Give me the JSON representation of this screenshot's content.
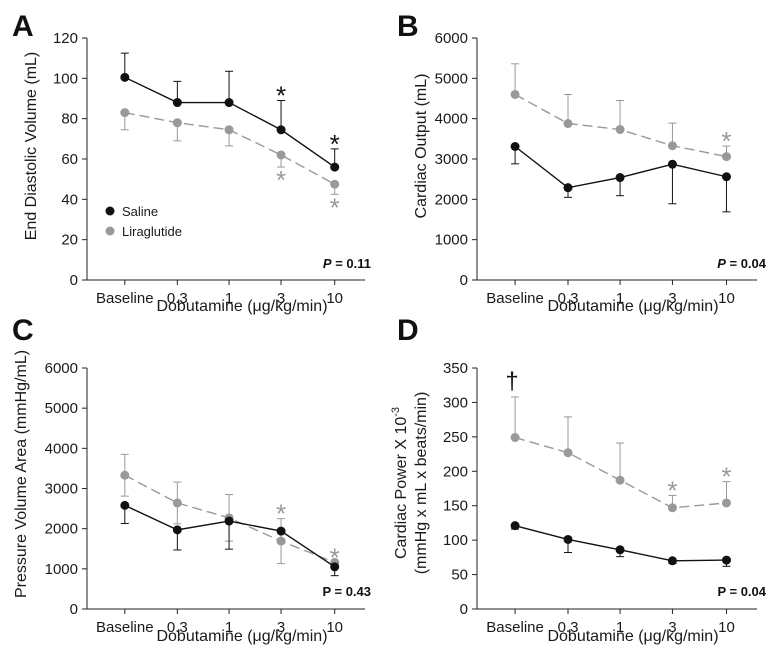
{
  "chart_data": [
    {
      "panel": "A",
      "type": "line",
      "categories": [
        "Baseline",
        "0.3",
        "1",
        "3",
        "10"
      ],
      "xlabel": "Dobutamine (μg/kg/min)",
      "ylabel": "End Diastolic Volume (mL)",
      "ylim": [
        0,
        120
      ],
      "yticks": [
        0,
        20,
        40,
        60,
        80,
        100,
        120
      ],
      "p_value_prefix": "P",
      "p_value_text": " = 0.11",
      "legend": {
        "placement": "bottom-left"
      },
      "series": [
        {
          "name": "Saline",
          "color": "#111111",
          "dashed": false,
          "values": [
            100.5,
            88,
            88,
            74.5,
            56
          ],
          "errors": [
            12,
            10.5,
            15.5,
            14.5,
            9
          ],
          "error_dir": "up",
          "markers": [
            "",
            "",
            "",
            "*",
            "*"
          ]
        },
        {
          "name": "Liraglutide",
          "color": "#999999",
          "dashed": true,
          "values": [
            83,
            78,
            74.5,
            62,
            47.5
          ],
          "errors": [
            8.5,
            9,
            8,
            6,
            5
          ],
          "error_dir": "down",
          "markers": [
            "",
            "",
            "",
            "*",
            "*"
          ]
        }
      ]
    },
    {
      "panel": "B",
      "type": "line",
      "categories": [
        "Baseline",
        "0.3",
        "1",
        "3",
        "10"
      ],
      "xlabel": "Dobutamine (μg/kg/min)",
      "ylabel": "Cardiac Output (mL)",
      "ylim": [
        0,
        6000
      ],
      "yticks": [
        0,
        1000,
        2000,
        3000,
        4000,
        5000,
        6000
      ],
      "p_value_prefix": "P",
      "p_value_text": " = 0.04",
      "series": [
        {
          "name": "Saline",
          "color": "#111111",
          "dashed": false,
          "values": [
            3310,
            2290,
            2540,
            2870,
            2560
          ],
          "errors": [
            430,
            240,
            450,
            980,
            870
          ],
          "error_dir": "down",
          "markers": [
            "",
            "",
            "",
            "",
            ""
          ]
        },
        {
          "name": "Liraglutide",
          "color": "#999999",
          "dashed": true,
          "values": [
            4600,
            3880,
            3730,
            3330,
            3060
          ],
          "errors": [
            760,
            720,
            720,
            560,
            260
          ],
          "error_dir": "up",
          "markers": [
            "",
            "",
            "",
            "",
            "*"
          ]
        }
      ]
    },
    {
      "panel": "C",
      "type": "line",
      "categories": [
        "Baseline",
        "0.3",
        "1",
        "3",
        "10"
      ],
      "xlabel": "Dobutamine (μg/kg/min)",
      "ylabel": "Pressure Volume Area (mmHg/mL)",
      "ylim": [
        0,
        6000
      ],
      "yticks": [
        0,
        1000,
        2000,
        3000,
        4000,
        5000,
        6000
      ],
      "p_value_prefix": "P",
      "p_value_text": " = 0.43",
      "series": [
        {
          "name": "Saline",
          "color": "#111111",
          "dashed": false,
          "values": [
            2580,
            1970,
            2190,
            1940,
            1050
          ],
          "errors": [
            450,
            500,
            700,
            0,
            220
          ],
          "error_dir": "down",
          "markers": [
            "",
            "",
            "",
            "",
            ""
          ]
        },
        {
          "name": "Liraglutide",
          "color": "#999999",
          "dashed": true,
          "values": [
            3330,
            2640,
            2270,
            1690,
            1160
          ],
          "errors": [
            520,
            520,
            580,
            560,
            0
          ],
          "error_dir": "both",
          "markers": [
            "",
            "",
            "",
            "*",
            "*"
          ]
        }
      ]
    },
    {
      "panel": "D",
      "type": "line",
      "categories": [
        "Baseline",
        "0.3",
        "1",
        "3",
        "10"
      ],
      "xlabel": "Dobutamine (μg/kg/min)",
      "ylabel_line1": "Cardiac Power X 10",
      "ylabel_sup": "-3",
      "ylabel_line2": "(mmHg x mL x beats/min)",
      "ylim": [
        0,
        350
      ],
      "yticks": [
        0,
        50,
        100,
        150,
        200,
        250,
        300,
        350
      ],
      "p_value_prefix": "P",
      "p_value_text": " = 0.04",
      "annotation": "†",
      "series": [
        {
          "name": "Saline",
          "color": "#111111",
          "dashed": false,
          "values": [
            121,
            101,
            86,
            70,
            71
          ],
          "errors": [
            5,
            19,
            10,
            4,
            9
          ],
          "error_dir": "down",
          "markers": [
            "",
            "",
            "",
            "",
            ""
          ]
        },
        {
          "name": "Liraglutide",
          "color": "#999999",
          "dashed": true,
          "values": [
            249,
            227,
            187,
            147,
            154
          ],
          "errors": [
            59,
            52,
            54,
            18,
            31
          ],
          "error_dir": "up",
          "markers": [
            "",
            "",
            "",
            "*",
            "*"
          ]
        }
      ]
    }
  ]
}
